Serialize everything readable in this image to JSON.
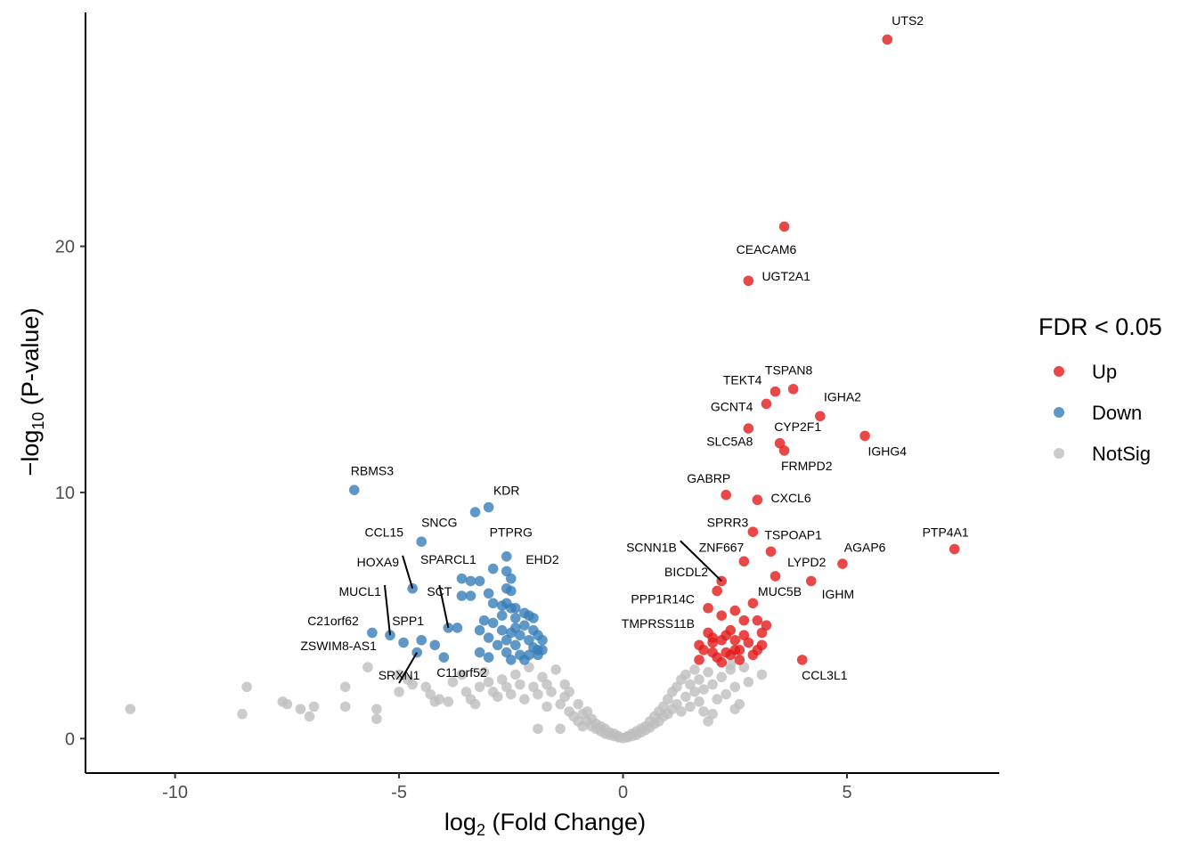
{
  "chart_data": {
    "type": "scatter",
    "xlabel_main": "log",
    "xlabel_sub": "2",
    "xlabel_rest": " (Fold Change)",
    "ylabel_pre": "−log",
    "ylabel_sub": "10",
    "ylabel_rest": " (P-value)",
    "xlim": [
      -12,
      8.4
    ],
    "ylim": [
      -1.4,
      29.5
    ],
    "xticks": [
      -10,
      -5,
      0,
      5
    ],
    "xtick_labels": [
      "-10",
      "-5",
      "0",
      "5"
    ],
    "yticks": [
      0,
      10,
      20
    ],
    "ytick_labels": [
      "0",
      "10",
      "20"
    ],
    "legend": {
      "title": "FDR < 0.05",
      "position": "right",
      "entries": [
        {
          "label": "Up",
          "color": "#E41A1C"
        },
        {
          "label": "Down",
          "color": "#377EB8"
        },
        {
          "label": "NotSig",
          "color": "#BEBEBE"
        }
      ]
    },
    "colors": {
      "Up": "#E41A1C",
      "Down": "#377EB8",
      "NotSig": "#BEBEBE"
    },
    "labels": [
      {
        "text": "UTS2",
        "x": 5.9,
        "y": 28.4,
        "anchor": "start",
        "lx": 6.0,
        "ly": 29.0
      },
      {
        "text": "CEACAM6",
        "x": 3.6,
        "y": 20.8,
        "anchor": "middle",
        "lx": 3.2,
        "ly": 19.7
      },
      {
        "text": "UGT2A1",
        "x": 2.8,
        "y": 18.6,
        "anchor": "start",
        "lx": 3.1,
        "ly": 18.6
      },
      {
        "text": "TSPAN8",
        "x": 3.8,
        "y": 14.2,
        "anchor": "middle",
        "lx": 3.7,
        "ly": 14.8
      },
      {
        "text": "TEKT4",
        "x": 3.4,
        "y": 14.1,
        "anchor": "end",
        "lx": 3.1,
        "ly": 14.4
      },
      {
        "text": "IGHA2",
        "x": 4.4,
        "y": 13.1,
        "anchor": "middle",
        "lx": 4.9,
        "ly": 13.7
      },
      {
        "text": "GCNT4",
        "x": 2.8,
        "y": 12.6,
        "anchor": "end",
        "lx": 2.9,
        "ly": 13.3
      },
      {
        "text": "CYP2F1",
        "x": 3.5,
        "y": 11.9,
        "anchor": "middle",
        "lx": 3.9,
        "ly": 12.5
      },
      {
        "text": "SLC5A8",
        "x": 3.5,
        "y": 12.0,
        "anchor": "end",
        "lx": 2.9,
        "ly": 11.9
      },
      {
        "text": "IGHG4",
        "x": 5.4,
        "y": 12.3,
        "anchor": "middle",
        "lx": 5.9,
        "ly": 11.5
      },
      {
        "text": "FRMPD2",
        "x": 3.6,
        "y": 11.7,
        "anchor": "middle",
        "lx": 4.1,
        "ly": 10.9
      },
      {
        "text": "GABRP",
        "x": 2.3,
        "y": 9.9,
        "anchor": "end",
        "lx": 2.4,
        "ly": 10.4
      },
      {
        "text": "CXCL6",
        "x": 3.0,
        "y": 9.7,
        "anchor": "start",
        "lx": 3.3,
        "ly": 9.6
      },
      {
        "text": "RBMS3",
        "x": -6.0,
        "y": 10.1,
        "anchor": "middle",
        "lx": -5.6,
        "ly": 10.7
      },
      {
        "text": "KDR",
        "x": -3.0,
        "y": 9.4,
        "anchor": "middle",
        "lx": -2.6,
        "ly": 9.9
      },
      {
        "text": "SNCG",
        "x": -4.5,
        "y": 8.0,
        "anchor": "middle",
        "lx": -4.1,
        "ly": 8.6
      },
      {
        "text": "CCL15",
        "x": -5.0,
        "y": 8.0,
        "anchor": "end",
        "lx": -4.9,
        "ly": 8.2
      },
      {
        "text": "PTPRG",
        "x": -2.6,
        "y": 7.4,
        "anchor": "middle",
        "lx": -2.5,
        "ly": 8.2
      },
      {
        "text": "SPRR3",
        "x": 2.9,
        "y": 8.4,
        "anchor": "end",
        "lx": 2.8,
        "ly": 8.6
      },
      {
        "text": "TSPOAP1",
        "x": 3.3,
        "y": 7.6,
        "anchor": "middle",
        "lx": 3.8,
        "ly": 8.1
      },
      {
        "text": "PTP4A1",
        "x": 7.4,
        "y": 7.7,
        "anchor": "middle",
        "lx": 7.2,
        "ly": 8.2
      },
      {
        "text": "SCNN1B",
        "x": 2.2,
        "y": 6.4,
        "anchor": "end",
        "lx": 1.2,
        "ly": 7.6
      },
      {
        "text": "ZNF667",
        "x": 2.7,
        "y": 7.2,
        "anchor": "end",
        "lx": 2.7,
        "ly": 7.6
      },
      {
        "text": "AGAP6",
        "x": 4.9,
        "y": 7.1,
        "anchor": "middle",
        "lx": 5.4,
        "ly": 7.6
      },
      {
        "text": "EHD2",
        "x": -2.5,
        "y": 6.8,
        "anchor": "middle",
        "lx": -1.8,
        "ly": 7.1
      },
      {
        "text": "SPARCL1",
        "x": -3.5,
        "y": 6.5,
        "anchor": "middle",
        "lx": -3.9,
        "ly": 7.1
      },
      {
        "text": "HOXA9",
        "x": -4.7,
        "y": 6.1,
        "anchor": "end",
        "lx": -5.0,
        "ly": 7.0
      },
      {
        "text": "LYPD2",
        "x": 3.4,
        "y": 6.6,
        "anchor": "middle",
        "lx": 4.1,
        "ly": 7.0
      },
      {
        "text": "BICDL2",
        "x": 2.2,
        "y": 6.4,
        "anchor": "end",
        "lx": 1.9,
        "ly": 6.6
      },
      {
        "text": "MUCL1",
        "x": -5.2,
        "y": 4.2,
        "anchor": "end",
        "lx": -5.4,
        "ly": 5.8
      },
      {
        "text": "SCT",
        "x": -3.9,
        "y": 4.5,
        "anchor": "middle",
        "lx": -4.1,
        "ly": 5.8
      },
      {
        "text": "MUC5B",
        "x": 2.9,
        "y": 5.5,
        "anchor": "middle",
        "lx": 3.5,
        "ly": 5.8
      },
      {
        "text": "IGHM",
        "x": 4.2,
        "y": 6.4,
        "anchor": "middle",
        "lx": 4.8,
        "ly": 5.7
      },
      {
        "text": "PPP1R14C",
        "x": 1.8,
        "y": 5.2,
        "anchor": "end",
        "lx": 1.6,
        "ly": 5.5
      },
      {
        "text": "C21orf62",
        "x": -5.6,
        "y": 4.3,
        "anchor": "end",
        "lx": -5.9,
        "ly": 4.6
      },
      {
        "text": "SPP1",
        "x": -4.9,
        "y": 3.9,
        "anchor": "middle",
        "lx": -4.8,
        "ly": 4.6
      },
      {
        "text": "TMPRSS11B",
        "x": 1.7,
        "y": 4.3,
        "anchor": "end",
        "lx": 1.6,
        "ly": 4.5
      },
      {
        "text": "ZSWIM8-AS1",
        "x": -4.6,
        "y": 3.5,
        "anchor": "end",
        "lx": -5.5,
        "ly": 3.6
      },
      {
        "text": "SRXN1",
        "x": -4.6,
        "y": 3.5,
        "anchor": "middle",
        "lx": -5.0,
        "ly": 2.4
      },
      {
        "text": "C11orf52",
        "x": -3.5,
        "y": 3.3,
        "anchor": "middle",
        "lx": -3.6,
        "ly": 2.5
      },
      {
        "text": "CCL3L1",
        "x": 4.0,
        "y": 3.2,
        "anchor": "middle",
        "lx": 4.5,
        "ly": 2.4
      }
    ],
    "leader_lines": [
      "SCNN1B",
      "HOXA9",
      "MUCL1",
      "SCT",
      "SRXN1"
    ],
    "up_points": [
      [
        5.9,
        28.4
      ],
      [
        3.6,
        20.8
      ],
      [
        2.8,
        18.6
      ],
      [
        3.8,
        14.2
      ],
      [
        3.4,
        14.1
      ],
      [
        3.2,
        13.6
      ],
      [
        4.4,
        13.1
      ],
      [
        2.8,
        12.6
      ],
      [
        5.4,
        12.3
      ],
      [
        3.5,
        12.0
      ],
      [
        3.6,
        11.7
      ],
      [
        2.3,
        9.9
      ],
      [
        3.0,
        9.7
      ],
      [
        2.9,
        8.4
      ],
      [
        7.4,
        7.7
      ],
      [
        3.3,
        7.6
      ],
      [
        2.7,
        7.2
      ],
      [
        4.9,
        7.1
      ],
      [
        3.4,
        6.6
      ],
      [
        4.2,
        6.4
      ],
      [
        2.2,
        6.4
      ],
      [
        2.1,
        6.0
      ],
      [
        2.9,
        5.5
      ],
      [
        1.9,
        5.3
      ],
      [
        2.5,
        5.2
      ],
      [
        2.2,
        5.0
      ],
      [
        2.7,
        4.8
      ],
      [
        3.0,
        4.8
      ],
      [
        3.2,
        4.6
      ],
      [
        1.9,
        4.3
      ],
      [
        2.4,
        4.4
      ],
      [
        2.0,
        4.1
      ],
      [
        2.3,
        4.2
      ],
      [
        2.7,
        4.2
      ],
      [
        3.1,
        4.3
      ],
      [
        1.7,
        3.8
      ],
      [
        2.0,
        3.9
      ],
      [
        2.2,
        4.0
      ],
      [
        2.5,
        4.0
      ],
      [
        2.8,
        3.9
      ],
      [
        3.1,
        3.8
      ],
      [
        2.0,
        3.5
      ],
      [
        2.3,
        3.5
      ],
      [
        2.6,
        3.6
      ],
      [
        3.0,
        3.6
      ],
      [
        1.7,
        3.2
      ],
      [
        2.1,
        3.3
      ],
      [
        2.4,
        3.4
      ],
      [
        4.0,
        3.2
      ],
      [
        2.6,
        3.2
      ],
      [
        2.9,
        3.4
      ],
      [
        2.2,
        3.1
      ],
      [
        2.5,
        3.6
      ],
      [
        1.8,
        3.6
      ]
    ],
    "down_points": [
      [
        -6.0,
        10.1
      ],
      [
        -3.0,
        9.4
      ],
      [
        -3.3,
        9.2
      ],
      [
        -4.5,
        8.0
      ],
      [
        -2.6,
        7.4
      ],
      [
        -2.9,
        6.9
      ],
      [
        -2.6,
        6.8
      ],
      [
        -4.7,
        6.1
      ],
      [
        -3.6,
        6.5
      ],
      [
        -3.4,
        6.4
      ],
      [
        -3.2,
        6.4
      ],
      [
        -2.5,
        6.5
      ],
      [
        -2.6,
        6.1
      ],
      [
        -2.5,
        6.0
      ],
      [
        -3.0,
        5.9
      ],
      [
        -3.4,
        5.8
      ],
      [
        -3.6,
        5.8
      ],
      [
        -2.9,
        5.5
      ],
      [
        -2.6,
        5.5
      ],
      [
        -2.7,
        5.4
      ],
      [
        -2.5,
        5.3
      ],
      [
        -2.4,
        5.3
      ],
      [
        -2.2,
        5.1
      ],
      [
        -2.1,
        5.0
      ],
      [
        -2.7,
        5.0
      ],
      [
        -2.4,
        4.9
      ],
      [
        -2.0,
        4.9
      ],
      [
        -3.1,
        4.8
      ],
      [
        -2.9,
        4.7
      ],
      [
        -3.9,
        4.5
      ],
      [
        -3.7,
        4.5
      ],
      [
        -2.4,
        4.5
      ],
      [
        -2.2,
        4.6
      ],
      [
        -3.2,
        4.4
      ],
      [
        -2.7,
        4.4
      ],
      [
        -2.0,
        4.4
      ],
      [
        -2.5,
        4.3
      ],
      [
        -2.3,
        4.2
      ],
      [
        -1.9,
        4.2
      ],
      [
        -5.2,
        4.2
      ],
      [
        -3.0,
        4.1
      ],
      [
        -2.6,
        4.0
      ],
      [
        -2.1,
        4.0
      ],
      [
        -1.8,
        4.0
      ],
      [
        -5.6,
        4.3
      ],
      [
        -4.9,
        3.9
      ],
      [
        -4.5,
        4.0
      ],
      [
        -4.2,
        3.8
      ],
      [
        -2.8,
        3.8
      ],
      [
        -2.4,
        3.8
      ],
      [
        -2.0,
        3.7
      ],
      [
        -1.9,
        3.6
      ],
      [
        -1.8,
        3.6
      ],
      [
        -4.6,
        3.5
      ],
      [
        -3.2,
        3.5
      ],
      [
        -2.6,
        3.5
      ],
      [
        -2.3,
        3.4
      ],
      [
        -2.1,
        3.4
      ],
      [
        -1.9,
        3.4
      ],
      [
        -4.0,
        3.3
      ],
      [
        -3.0,
        3.3
      ],
      [
        -2.5,
        3.2
      ],
      [
        -2.2,
        3.2
      ]
    ],
    "notsig_points": [
      [
        -11.0,
        1.2
      ],
      [
        -8.5,
        1.0
      ],
      [
        -8.4,
        2.1
      ],
      [
        -7.6,
        1.5
      ],
      [
        -7.5,
        1.4
      ],
      [
        -7.2,
        1.2
      ],
      [
        -7.0,
        0.9
      ],
      [
        -6.9,
        1.3
      ],
      [
        -6.2,
        2.1
      ],
      [
        -6.2,
        1.3
      ],
      [
        -5.5,
        0.8
      ],
      [
        -5.5,
        1.2
      ],
      [
        -5.7,
        2.9
      ],
      [
        -5.0,
        1.9
      ],
      [
        -5.0,
        2.6
      ],
      [
        -4.8,
        2.4
      ],
      [
        -4.7,
        2.2
      ],
      [
        -4.4,
        2.1
      ],
      [
        -4.3,
        1.8
      ],
      [
        -4.2,
        1.5
      ],
      [
        -4.1,
        1.6
      ],
      [
        -3.9,
        1.5
      ],
      [
        -3.8,
        2.3
      ],
      [
        -3.6,
        2.6
      ],
      [
        -3.5,
        1.9
      ],
      [
        -3.4,
        1.6
      ],
      [
        -3.3,
        1.4
      ],
      [
        -3.2,
        2.1
      ],
      [
        -3.1,
        2.7
      ],
      [
        -3.0,
        2.3
      ],
      [
        -2.9,
        1.9
      ],
      [
        -2.8,
        1.7
      ],
      [
        -2.7,
        2.4
      ],
      [
        -2.6,
        2.1
      ],
      [
        -2.5,
        1.8
      ],
      [
        -2.4,
        2.6
      ],
      [
        -2.3,
        2.2
      ],
      [
        -2.2,
        1.6
      ],
      [
        -2.1,
        2.9
      ],
      [
        -2.0,
        2.1
      ],
      [
        -1.9,
        1.8
      ],
      [
        -1.9,
        0.4
      ],
      [
        -1.8,
        2.5
      ],
      [
        -1.7,
        1.3
      ],
      [
        -1.7,
        2.2
      ],
      [
        -1.6,
        1.9
      ],
      [
        -1.5,
        2.8
      ],
      [
        -1.4,
        1.4
      ],
      [
        -1.4,
        0.4
      ],
      [
        -1.3,
        1.7
      ],
      [
        -1.3,
        2.2
      ],
      [
        -1.2,
        1.1
      ],
      [
        -1.2,
        1.9
      ],
      [
        -1.1,
        0.9
      ],
      [
        -1.0,
        1.4
      ],
      [
        -1.0,
        0.7
      ],
      [
        -0.9,
        1.0
      ],
      [
        -0.9,
        0.5
      ],
      [
        -0.8,
        0.7
      ],
      [
        -0.8,
        1.1
      ],
      [
        -0.7,
        0.5
      ],
      [
        -0.7,
        0.8
      ],
      [
        -0.6,
        0.4
      ],
      [
        -0.6,
        0.6
      ],
      [
        -0.5,
        0.3
      ],
      [
        -0.5,
        0.5
      ],
      [
        -0.4,
        0.2
      ],
      [
        -0.4,
        0.4
      ],
      [
        -0.3,
        0.15
      ],
      [
        -0.3,
        0.25
      ],
      [
        -0.2,
        0.1
      ],
      [
        -0.2,
        0.2
      ],
      [
        -0.1,
        0.05
      ],
      [
        -0.1,
        0.1
      ],
      [
        0.0,
        0.02
      ],
      [
        0.1,
        0.05
      ],
      [
        0.1,
        0.1
      ],
      [
        0.2,
        0.1
      ],
      [
        0.2,
        0.2
      ],
      [
        0.3,
        0.15
      ],
      [
        0.3,
        0.3
      ],
      [
        0.4,
        0.25
      ],
      [
        0.4,
        0.4
      ],
      [
        0.5,
        0.35
      ],
      [
        0.5,
        0.5
      ],
      [
        0.6,
        0.45
      ],
      [
        0.6,
        0.7
      ],
      [
        0.7,
        0.6
      ],
      [
        0.7,
        0.9
      ],
      [
        0.8,
        0.7
      ],
      [
        0.8,
        1.1
      ],
      [
        0.9,
        0.9
      ],
      [
        0.9,
        1.3
      ],
      [
        1.0,
        1.0
      ],
      [
        1.0,
        1.6
      ],
      [
        1.1,
        1.2
      ],
      [
        1.1,
        1.9
      ],
      [
        1.2,
        1.4
      ],
      [
        1.2,
        2.1
      ],
      [
        1.3,
        1.1
      ],
      [
        1.3,
        2.4
      ],
      [
        1.4,
        1.7
      ],
      [
        1.4,
        2.6
      ],
      [
        1.5,
        1.3
      ],
      [
        1.5,
        2.2
      ],
      [
        1.6,
        1.9
      ],
      [
        1.6,
        2.8
      ],
      [
        1.7,
        1.5
      ],
      [
        1.7,
        2.4
      ],
      [
        1.8,
        2.0
      ],
      [
        1.8,
        1.1
      ],
      [
        1.9,
        2.7
      ],
      [
        1.9,
        0.7
      ],
      [
        2.0,
        2.2
      ],
      [
        2.1,
        1.6
      ],
      [
        2.2,
        2.5
      ],
      [
        2.3,
        1.8
      ],
      [
        2.4,
        2.8
      ],
      [
        2.5,
        2.1
      ],
      [
        2.6,
        1.4
      ],
      [
        2.7,
        2.9
      ],
      [
        2.8,
        2.3
      ],
      [
        3.1,
        2.6
      ],
      [
        2.5,
        1.2
      ],
      [
        2.0,
        1.0
      ],
      [
        2.4,
        3.0
      ]
    ]
  }
}
